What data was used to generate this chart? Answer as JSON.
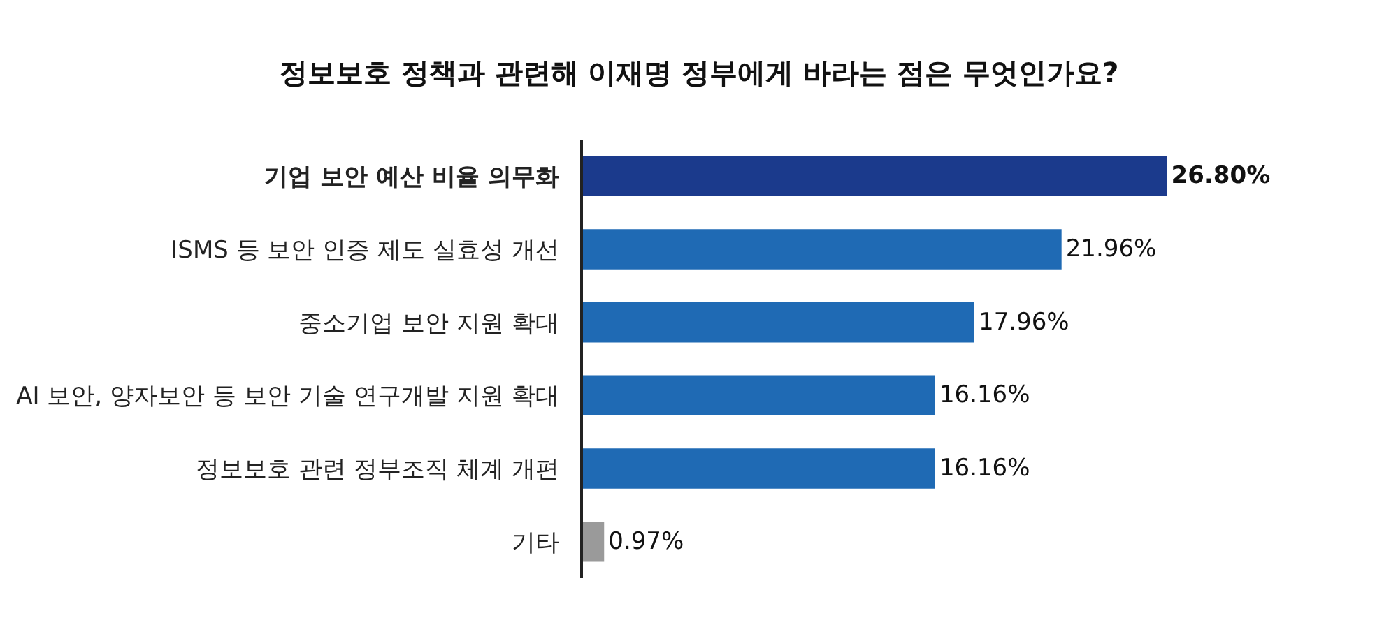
{
  "chart_data": {
    "type": "bar",
    "orientation": "horizontal",
    "title": "정보보호 정책과 관련해 이재명 정부에게 바라는 점은 무엇인가요?",
    "categories": [
      "기업 보안 예산 비율 의무화",
      "ISMS 등 보안 인증 제도 실효성 개선",
      "중소기업 보안 지원 확대",
      "AI 보안, 양자보안 등 보안 기술 연구개발 지원 확대",
      "정보보호 관련 정부조직 체계 개편",
      "기타"
    ],
    "values": [
      26.8,
      21.96,
      17.96,
      16.16,
      16.16,
      0.97
    ],
    "value_labels": [
      "26.80%",
      "21.96%",
      "17.96%",
      "16.16%",
      "16.16%",
      "0.97%"
    ],
    "colors": [
      "#1b3a8c",
      "#1f6ab4",
      "#1f6ab4",
      "#1f6ab4",
      "#1f6ab4",
      "#9a9a9a"
    ],
    "tick_labels": "y",
    "legend": false
  }
}
